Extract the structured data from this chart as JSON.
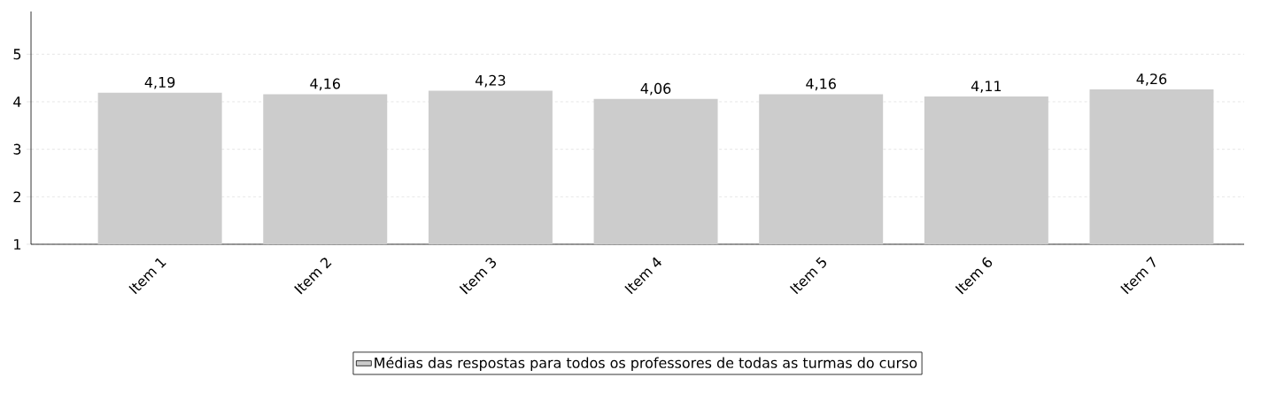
{
  "chart_data": {
    "type": "bar",
    "categories": [
      "Item 1",
      "Item 2",
      "Item 3",
      "Item 4",
      "Item 5",
      "Item 6",
      "Item 7"
    ],
    "series": [
      {
        "name": "Médias das respostas para todos os professores de todas as turmas do curso",
        "color": "#cccccc",
        "values": [
          4.19,
          4.16,
          4.23,
          4.06,
          4.16,
          4.11,
          4.26
        ],
        "value_labels": [
          "4,19",
          "4,16",
          "4,23",
          "4,06",
          "4,16",
          "4,11",
          "4,26"
        ]
      }
    ],
    "ylim": [
      1,
      5.9
    ],
    "yticks": [
      1,
      2,
      3,
      4,
      5
    ],
    "grid": "y",
    "legend": "bottom"
  }
}
